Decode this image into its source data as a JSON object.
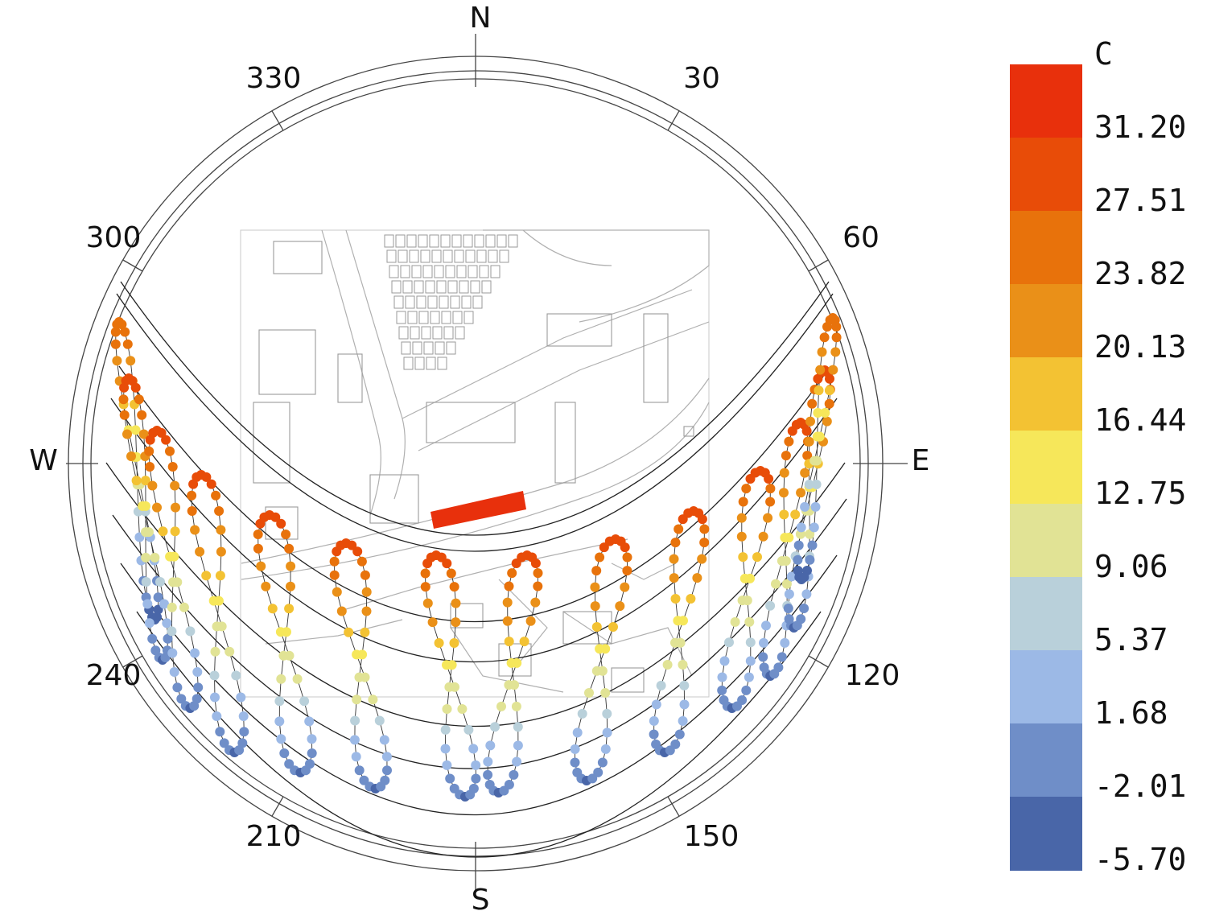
{
  "compass": {
    "cardinals": {
      "north": "N",
      "east": "E",
      "south": "S",
      "west": "W"
    },
    "bearings": [
      {
        "deg": 30,
        "label": "30"
      },
      {
        "deg": 60,
        "label": "60"
      },
      {
        "deg": 120,
        "label": "120"
      },
      {
        "deg": 150,
        "label": "150"
      },
      {
        "deg": 210,
        "label": "210"
      },
      {
        "deg": 240,
        "label": "240"
      },
      {
        "deg": 300,
        "label": "300"
      },
      {
        "deg": 330,
        "label": "330"
      }
    ]
  },
  "legend": {
    "unit": "C",
    "bins": [
      {
        "color": "#e8300c"
      },
      {
        "color": "#e84c08"
      },
      {
        "color": "#e8720b"
      },
      {
        "color": "#ea9018"
      },
      {
        "color": "#f3c233"
      },
      {
        "color": "#f6e75a"
      },
      {
        "color": "#e1e395"
      },
      {
        "color": "#b9d0da"
      },
      {
        "color": "#9cb9e6"
      },
      {
        "color": "#6f8ec8"
      },
      {
        "color": "#4966a8"
      }
    ],
    "values": [
      "31.20",
      "27.51",
      "23.82",
      "20.13",
      "16.44",
      "12.75",
      "9.06",
      "5.37",
      "1.68",
      "-2.01",
      "-5.70"
    ]
  },
  "map": {
    "building_color": "#e8300c"
  }
}
